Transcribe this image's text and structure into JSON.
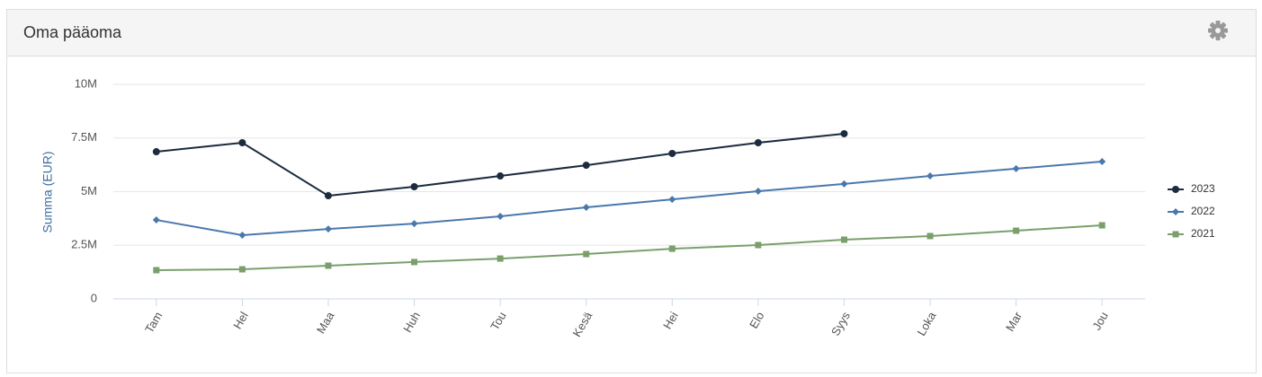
{
  "chart_data": {
    "type": "line",
    "title": "Oma pääoma",
    "y_label": "Summa (EUR)",
    "categories": [
      "Tam",
      "Hel",
      "Maa",
      "Huh",
      "Tou",
      "Kesä",
      "Hei",
      "Elo",
      "Syys",
      "Loka",
      "Mar",
      "Jou"
    ],
    "series": [
      {
        "name": "2023",
        "color": "#1c2b3e",
        "marker": "circle",
        "values": [
          6860000,
          7280000,
          4810000,
          5230000,
          5730000,
          6230000,
          6780000,
          7280000,
          7700000,
          null,
          null,
          null
        ]
      },
      {
        "name": "2022",
        "color": "#4a78ad",
        "marker": "diamond",
        "values": [
          3680000,
          2970000,
          3260000,
          3510000,
          3850000,
          4270000,
          4640000,
          5020000,
          5360000,
          5730000,
          6070000,
          6400000
        ]
      },
      {
        "name": "2021",
        "color": "#7a9f6b",
        "marker": "square",
        "values": [
          1340000,
          1380000,
          1550000,
          1720000,
          1880000,
          2090000,
          2340000,
          2510000,
          2760000,
          2930000,
          3180000,
          3430000
        ]
      }
    ],
    "ylim": [
      0,
      10000000
    ],
    "yticks": [
      0,
      {
        "value": 2500000,
        "label": "2.5M"
      },
      {
        "value": 5000000,
        "label": "5M"
      },
      {
        "value": 7500000,
        "label": "7.5M"
      },
      {
        "value": 10000000,
        "label": "10M"
      }
    ],
    "grid": true,
    "legend": "right"
  }
}
